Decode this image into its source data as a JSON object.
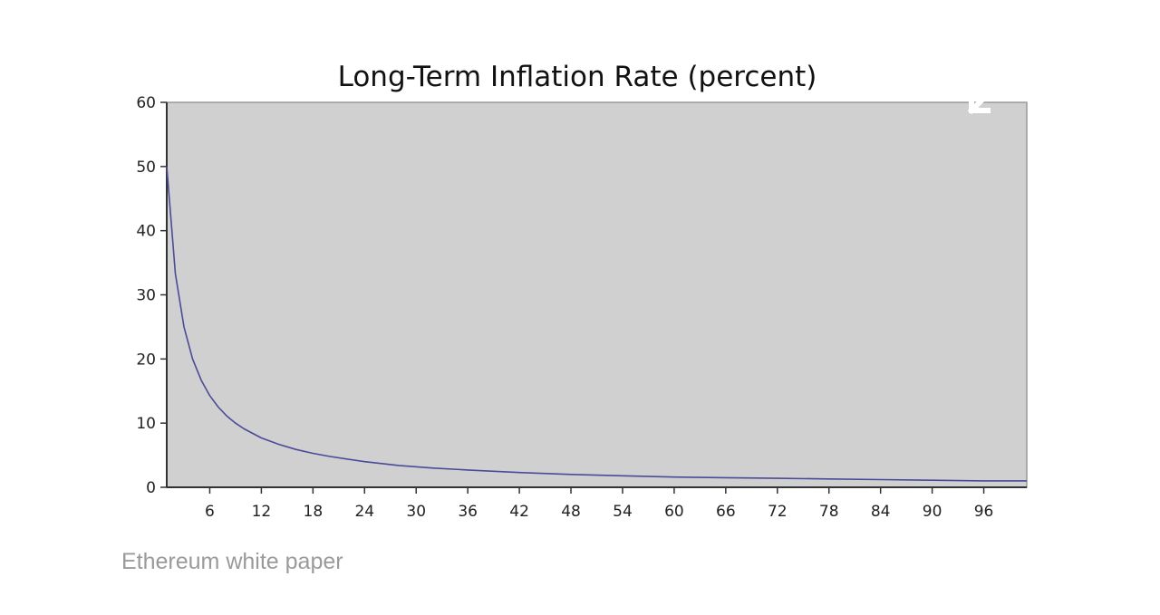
{
  "chart_data": {
    "type": "line",
    "title": "Long-Term Inflation Rate (percent)",
    "xlabel": "",
    "ylabel": "",
    "xlim": [
      1,
      101
    ],
    "ylim": [
      0,
      60
    ],
    "x_ticks": [
      6,
      12,
      18,
      24,
      30,
      36,
      42,
      48,
      54,
      60,
      66,
      72,
      78,
      84,
      90,
      96
    ],
    "y_ticks": [
      0,
      10,
      20,
      30,
      40,
      50,
      60
    ],
    "grid": false,
    "colors": {
      "plot_background": "#d0d0d0",
      "line": "#4a4a9a",
      "axis": "#333333"
    },
    "series": [
      {
        "x": [
          1,
          2,
          3,
          4,
          5,
          6,
          7,
          8,
          9,
          10,
          12,
          14,
          16,
          18,
          20,
          24,
          28,
          32,
          36,
          42,
          48,
          54,
          60,
          66,
          72,
          78,
          84,
          90,
          96,
          101
        ],
        "values": [
          50,
          33.3,
          25,
          20,
          16.7,
          14.3,
          12.5,
          11.1,
          10,
          9.1,
          7.7,
          6.7,
          5.9,
          5.3,
          4.8,
          4,
          3.4,
          3,
          2.7,
          2.3,
          2,
          1.8,
          1.6,
          1.5,
          1.4,
          1.3,
          1.2,
          1.1,
          1,
          1
        ]
      }
    ]
  },
  "caption": "Ethereum white paper",
  "expand_button": {
    "icon": "expand-icon"
  }
}
